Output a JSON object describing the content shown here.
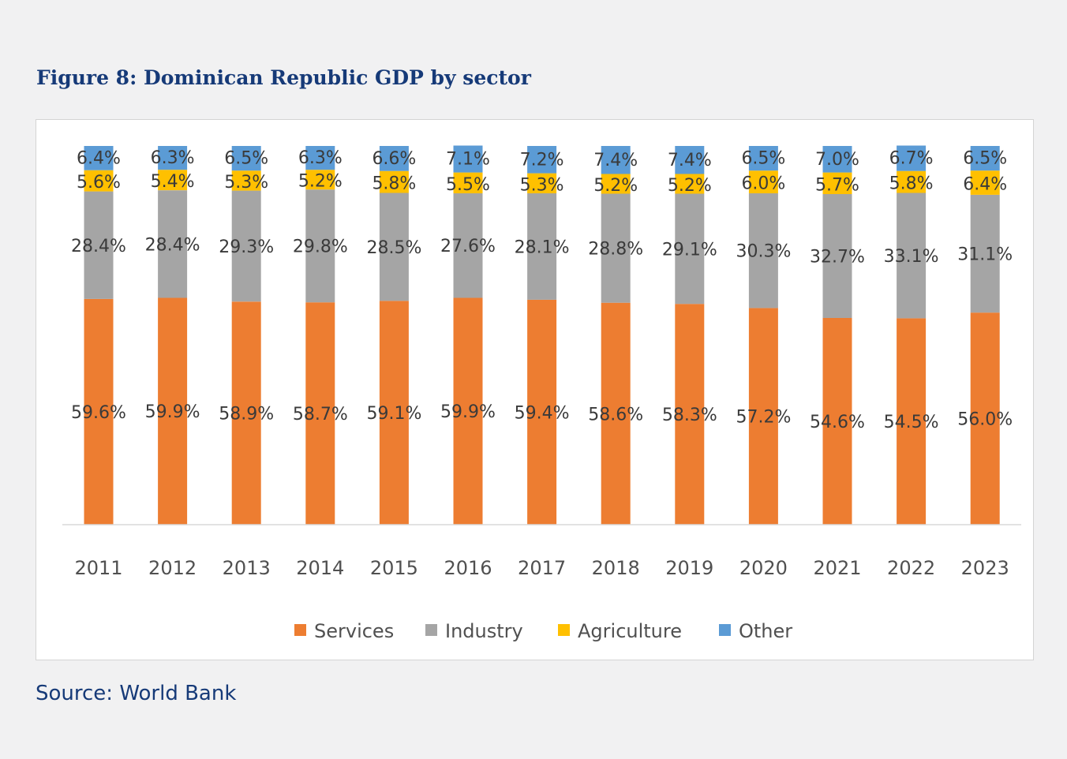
{
  "figure": {
    "title": "Figure 8: Dominican Republic GDP by sector",
    "source": "Source: World Bank"
  },
  "chart_data": {
    "type": "bar",
    "stacked": true,
    "title": "Figure 8: Dominican Republic GDP by sector",
    "xlabel": "",
    "ylabel": "",
    "ylim": [
      0,
      100
    ],
    "grid": false,
    "legend_position": "bottom",
    "categories": [
      "2011",
      "2012",
      "2013",
      "2014",
      "2015",
      "2016",
      "2017",
      "2018",
      "2019",
      "2020",
      "2021",
      "2022",
      "2023"
    ],
    "series": [
      {
        "name": "Services",
        "color": "#ed7d31",
        "values": [
          59.6,
          59.9,
          58.9,
          58.7,
          59.1,
          59.9,
          59.4,
          58.6,
          58.3,
          57.2,
          54.6,
          54.5,
          56.0
        ]
      },
      {
        "name": "Industry",
        "color": "#a5a5a5",
        "values": [
          28.4,
          28.4,
          29.3,
          29.8,
          28.5,
          27.6,
          28.1,
          28.8,
          29.1,
          30.3,
          32.7,
          33.1,
          31.1
        ]
      },
      {
        "name": "Agriculture",
        "color": "#ffc000",
        "values": [
          5.6,
          5.4,
          5.3,
          5.2,
          5.8,
          5.5,
          5.3,
          5.2,
          5.2,
          6.0,
          5.7,
          5.8,
          6.4
        ]
      },
      {
        "name": "Other",
        "color": "#5b9bd5",
        "values": [
          6.4,
          6.3,
          6.5,
          6.3,
          6.6,
          7.1,
          7.2,
          7.4,
          7.4,
          6.5,
          7.0,
          6.7,
          6.5
        ]
      }
    ],
    "data_label_suffix": "%"
  }
}
